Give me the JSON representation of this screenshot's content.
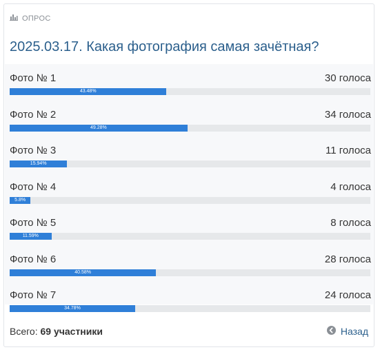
{
  "poll": {
    "header_label": "ОПРОС",
    "title": "2025.03.17. Какая фотография самая зачётная?",
    "options": [
      {
        "label": "Фото № 1",
        "votes_text": "30 голоса",
        "percent": 43.48,
        "percent_text": "43.48%"
      },
      {
        "label": "Фото № 2",
        "votes_text": "34 голоса",
        "percent": 49.28,
        "percent_text": "49.28%"
      },
      {
        "label": "Фото № 3",
        "votes_text": "11 голоса",
        "percent": 15.94,
        "percent_text": "15.94%"
      },
      {
        "label": "Фото № 4",
        "votes_text": "4 голоса",
        "percent": 5.8,
        "percent_text": "5.8%"
      },
      {
        "label": "Фото № 5",
        "votes_text": "8 голоса",
        "percent": 11.59,
        "percent_text": "11.59%"
      },
      {
        "label": "Фото № 6",
        "votes_text": "28 голоса",
        "percent": 40.58,
        "percent_text": "40.58%"
      },
      {
        "label": "Фото № 7",
        "votes_text": "24 голоса",
        "percent": 34.78,
        "percent_text": "34.78%"
      }
    ],
    "footer": {
      "total_label": "Всего:",
      "total_value": "69 участники",
      "back_label": "Назад"
    }
  },
  "icons": {
    "header": "bar-chart-icon",
    "back": "arrow-left-circle-icon"
  },
  "colors": {
    "accent": "#2f7fd8",
    "title": "#2b5f8c",
    "track": "#e6e8ea"
  }
}
